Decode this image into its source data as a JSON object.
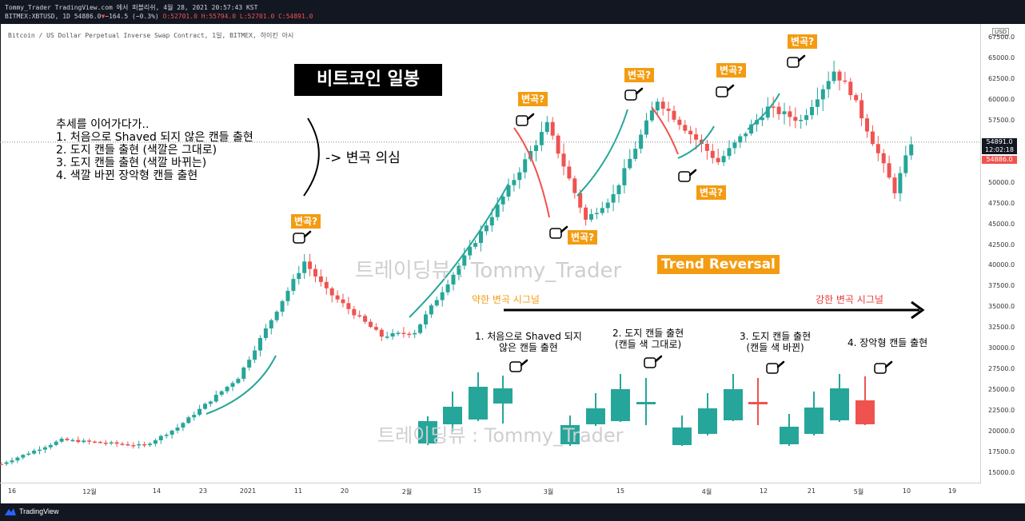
{
  "header": {
    "line1": "Tommy_Trader TradingView.com 에서 퍼블리쉬, 4월 28, 2021 20:57:43 KST",
    "symbol": "BITMEX:XBTUSD, 1D",
    "last": "54886.0",
    "change": "−164.5 (−0.3%)",
    "open": "O:52701.0",
    "high": "H:55794.0",
    "low": "L:52701.0",
    "close": "C:54891.0"
  },
  "subtitle": "Bitcoin / US Dollar Perpetual Inverse Swap Contract, 1일, BITMEX, 하이킨 아시",
  "currency": "USD",
  "price_tags": {
    "current": "54891.0",
    "countdown": "12:02:18",
    "last": "54886.0"
  },
  "title": "비트코인 일봉",
  "notes": [
    "추세를 이어가다가..",
    "1. 처음으로 Shaved 되지 않은 캔들 출현",
    "2. 도지 캔들 출현 (색깔은 그대로)",
    "3. 도지 캔들 출현 (색깔 바뀌는)",
    "4. 색깔 바뀐 장악형 캔들 출현"
  ],
  "doubt": "-> 변곡 의심",
  "badge_text": "변곡?",
  "watermark": "트레이딩뷰 : Tommy_Trader",
  "trend_reversal": "Trend Reversal",
  "weak_signal": "약한 변곡 시그널",
  "strong_signal": "강한 변곡 시그널",
  "pattern_captions": [
    {
      "line1": "1. 처음으로 Shaved 되지",
      "line2": "않은 캔들 출현"
    },
    {
      "line1": "2. 도지 캔들 출현",
      "line2": "(캔들 색 그대로)"
    },
    {
      "line1": "3. 도지 캔들 출현",
      "line2": "(캔들 색 바뀐)"
    },
    {
      "line1": "4. 장악형 캔들 출현",
      "line2": ""
    }
  ],
  "colors": {
    "up": "#26a69a",
    "down": "#ef5350",
    "badge": "#f39c12",
    "curve_up": "#26a69a",
    "curve_down": "#ef5350"
  },
  "icons": [
    "pointing-hand-icon",
    "tradingview-logo-icon"
  ],
  "branding": "TradingView",
  "chart_data": {
    "type": "candlestick",
    "chart_style": "heikin-ashi",
    "title": "Bitcoin / US Dollar Perpetual Inverse Swap Contract, 1일, BITMEX, 하이킨 아시",
    "ylim": [
      14000,
      68000
    ],
    "y_ticks": [
      15000,
      17500,
      20000,
      22500,
      25000,
      27500,
      30000,
      32500,
      35000,
      37500,
      40000,
      42500,
      45000,
      47500,
      50000,
      52500,
      55000,
      57500,
      60000,
      62500,
      65000,
      67500
    ],
    "x_ticks": [
      "16",
      "12월",
      "14",
      "23",
      "2021",
      "11",
      "20",
      "2월",
      "15",
      "3월",
      "15",
      "4월",
      "12",
      "21",
      "5월",
      "10",
      "19"
    ],
    "current_price": 54891.0,
    "anchors": [
      {
        "date": "2020-11-14",
        "close": 16100
      },
      {
        "date": "2020-11-25",
        "close": 19000
      },
      {
        "date": "2020-12-10",
        "close": 18300
      },
      {
        "date": "2020-12-16",
        "close": 20500
      },
      {
        "date": "2020-12-27",
        "close": 26500
      },
      {
        "date": "2021-01-08",
        "close": 40500
      },
      {
        "date": "2021-01-12",
        "close": 37000
      },
      {
        "date": "2021-01-22",
        "close": 31500
      },
      {
        "date": "2021-01-28",
        "close": 32000
      },
      {
        "date": "2021-02-10",
        "close": 45000
      },
      {
        "date": "2021-02-21",
        "close": 57000
      },
      {
        "date": "2021-02-28",
        "close": 45500
      },
      {
        "date": "2021-03-05",
        "close": 48500
      },
      {
        "date": "2021-03-13",
        "close": 60000
      },
      {
        "date": "2021-03-24",
        "close": 52500
      },
      {
        "date": "2021-04-02",
        "close": 59000
      },
      {
        "date": "2021-04-08",
        "close": 57500
      },
      {
        "date": "2021-04-14",
        "close": 63500
      },
      {
        "date": "2021-04-17",
        "close": 61000
      },
      {
        "date": "2021-04-25",
        "close": 49000
      },
      {
        "date": "2021-04-28",
        "close": 54891
      }
    ],
    "reversal_markers": [
      {
        "date": "2021-01-09",
        "label": "변곡?"
      },
      {
        "date": "2021-02-21",
        "label": "변곡?"
      },
      {
        "date": "2021-02-28",
        "label": "변곡?"
      },
      {
        "date": "2021-03-14",
        "label": "변곡?"
      },
      {
        "date": "2021-03-28",
        "label": "변곡?"
      },
      {
        "date": "2021-04-08",
        "label": "변곡?"
      },
      {
        "date": "2021-04-17",
        "label": "변곡?"
      }
    ]
  }
}
